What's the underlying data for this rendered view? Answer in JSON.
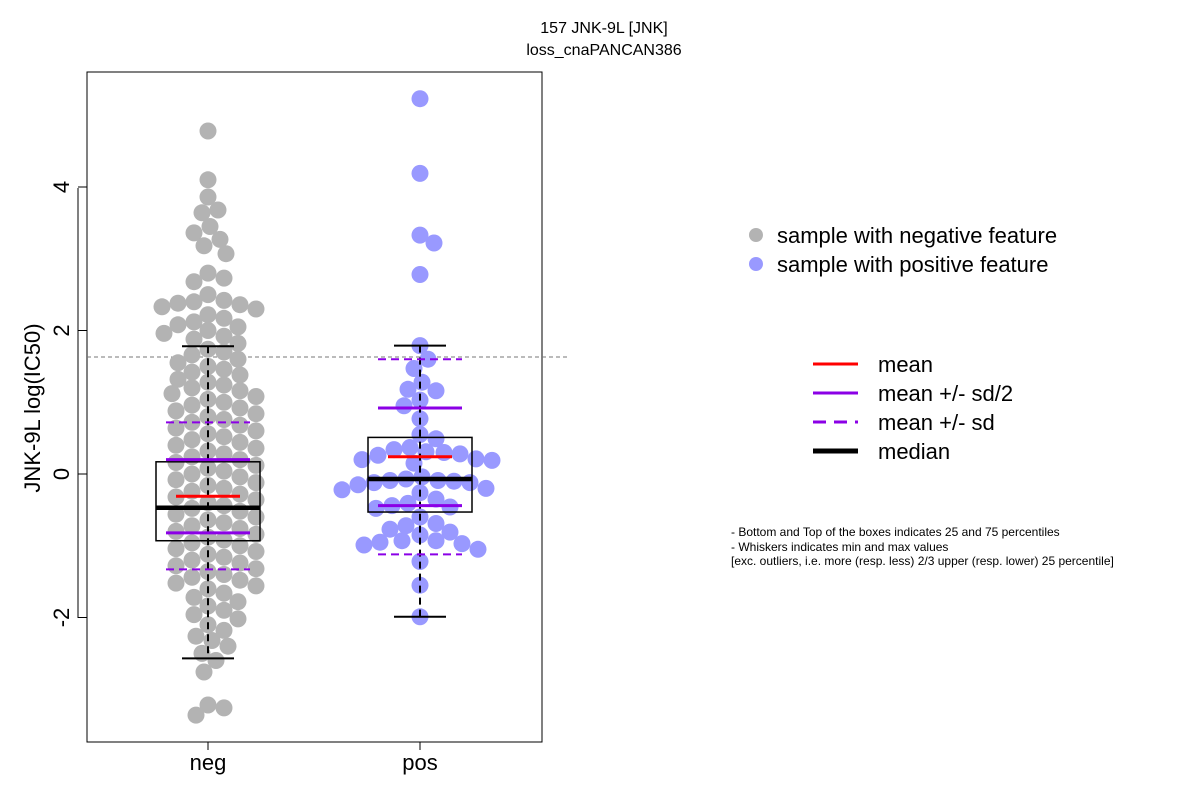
{
  "chart_data": {
    "type": "scatter",
    "subtype": "beeswarm-boxplot",
    "title": "157 JNK-9L [JNK]",
    "subtitle": "loss_cnaPANCAN386",
    "xlabel": "",
    "ylabel": "JNK-9L log(IC50)",
    "categories": [
      "neg",
      "pos"
    ],
    "ylim": [
      -3.7,
      5.65
    ],
    "y_ticks": [
      -2,
      0,
      2,
      4
    ],
    "y_tick_labels": [
      "-2",
      "0",
      "2",
      "4"
    ],
    "reference_line_y": 1.63,
    "grid": false,
    "colors": {
      "neg": "#b3b3b3",
      "pos": "#9999ff",
      "mean": "#ff0000",
      "sd": "#8b00e6",
      "median": "#000000"
    },
    "series": [
      {
        "name": "sample with negative feature",
        "category": "neg",
        "box": {
          "q1": -0.93,
          "q3": 0.17,
          "median": -0.47,
          "mean": -0.31,
          "sd_half_upper": 0.2,
          "sd_half_lower": -0.82,
          "sd_upper": 0.72,
          "sd_lower": -1.33,
          "whisker_low": -2.57,
          "whisker_high": 1.78
        },
        "values": [
          4.78,
          4.1,
          3.86,
          3.68,
          3.64,
          3.45,
          3.36,
          3.27,
          3.18,
          3.07,
          2.8,
          2.73,
          2.68,
          2.5,
          2.42,
          2.4,
          2.38,
          2.36,
          2.33,
          2.3,
          2.22,
          2.17,
          2.12,
          2.08,
          2.05,
          2.0,
          1.96,
          1.92,
          1.88,
          1.82,
          1.74,
          1.7,
          1.66,
          1.6,
          1.55,
          1.5,
          1.46,
          1.42,
          1.38,
          1.32,
          1.28,
          1.24,
          1.2,
          1.16,
          1.12,
          1.08,
          1.04,
          1.0,
          0.96,
          0.92,
          0.88,
          0.84,
          0.8,
          0.76,
          0.72,
          0.68,
          0.64,
          0.6,
          0.56,
          0.52,
          0.48,
          0.44,
          0.4,
          0.36,
          0.32,
          0.28,
          0.24,
          0.2,
          0.16,
          0.12,
          0.08,
          0.04,
          0.0,
          -0.04,
          -0.08,
          -0.12,
          -0.16,
          -0.2,
          -0.24,
          -0.28,
          -0.32,
          -0.36,
          -0.4,
          -0.44,
          -0.48,
          -0.52,
          -0.56,
          -0.6,
          -0.64,
          -0.68,
          -0.72,
          -0.76,
          -0.8,
          -0.84,
          -0.88,
          -0.92,
          -0.96,
          -1.0,
          -1.04,
          -1.08,
          -1.12,
          -1.16,
          -1.2,
          -1.24,
          -1.28,
          -1.32,
          -1.36,
          -1.4,
          -1.44,
          -1.48,
          -1.52,
          -1.56,
          -1.6,
          -1.66,
          -1.72,
          -1.78,
          -1.84,
          -1.9,
          -1.96,
          -2.02,
          -2.1,
          -2.18,
          -2.26,
          -2.32,
          -2.4,
          -2.5,
          -2.6,
          -2.76,
          -3.22,
          -3.26,
          -3.36
        ]
      },
      {
        "name": "sample with positive feature",
        "category": "pos",
        "box": {
          "q1": -0.53,
          "q3": 0.51,
          "median": -0.07,
          "mean": 0.24,
          "sd_half_upper": 0.92,
          "sd_half_lower": -0.44,
          "sd_upper": 1.6,
          "sd_lower": -1.12,
          "whisker_low": -1.99,
          "whisker_high": 1.79
        },
        "values": [
          5.23,
          4.19,
          3.33,
          3.22,
          2.78,
          1.79,
          1.6,
          1.47,
          1.28,
          1.18,
          1.16,
          1.03,
          0.95,
          0.77,
          0.55,
          0.49,
          0.37,
          0.34,
          0.31,
          0.3,
          0.28,
          0.26,
          0.21,
          0.2,
          0.19,
          0.15,
          -0.04,
          -0.07,
          -0.09,
          -0.09,
          -0.1,
          -0.12,
          -0.12,
          -0.15,
          -0.2,
          -0.22,
          -0.26,
          -0.35,
          -0.41,
          -0.44,
          -0.46,
          -0.48,
          -0.6,
          -0.69,
          -0.72,
          -0.77,
          -0.81,
          -0.85,
          -0.93,
          -0.93,
          -0.95,
          -0.97,
          -0.99,
          -1.05,
          -1.22,
          -1.55,
          -1.99
        ]
      }
    ],
    "legend": {
      "position": "right",
      "points": [
        "sample with negative feature",
        "sample with positive feature"
      ],
      "lines": [
        "mean",
        "mean +/- sd/2",
        "mean +/- sd",
        "median"
      ]
    },
    "notes": [
      "- Bottom and Top of the boxes indicates 25 and 75 percentiles",
      "- Whiskers indicates min and max values",
      "[exc. outliers, i.e. more (resp. less) 2/3 upper (resp. lower) 25 percentile]"
    ]
  }
}
